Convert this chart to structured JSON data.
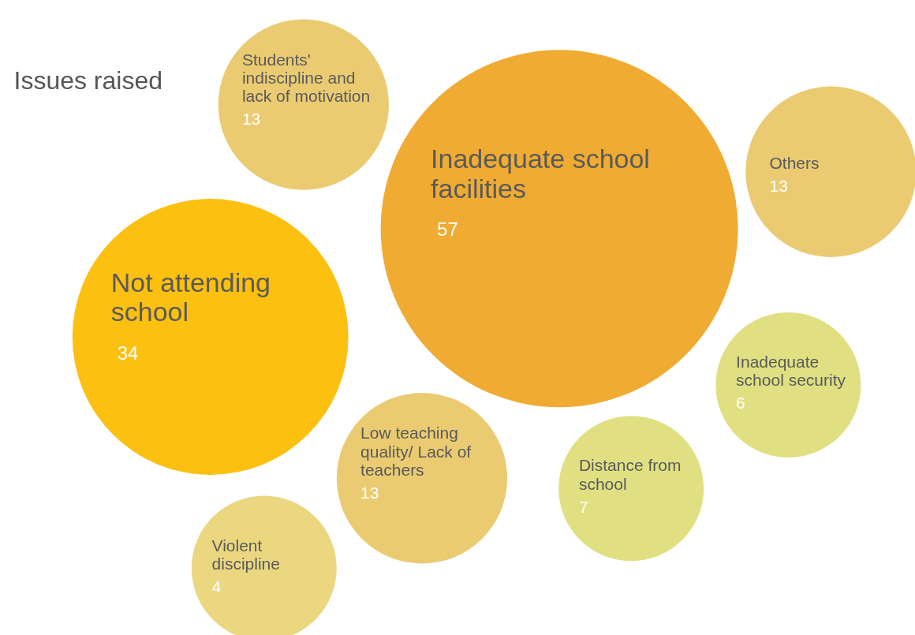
{
  "chart_data": {
    "type": "other",
    "title": "Issues raised",
    "categories": [
      "Students' indiscipline and lack of motivation",
      "Inadequate school facilities",
      "Others",
      "Not attending school",
      "Inadequate school security",
      "Low teaching quality/ Lack of teachers",
      "Distance from school",
      "Violent discipline"
    ],
    "values": [
      13,
      57,
      13,
      34,
      6,
      13,
      7,
      4
    ],
    "colors": [
      "#eacb72",
      "#f0ab33",
      "#eacb72",
      "#fcc010",
      "#e0e082",
      "#eacb72",
      "#e0e082",
      "#ead780"
    ],
    "data_labels": true
  }
}
